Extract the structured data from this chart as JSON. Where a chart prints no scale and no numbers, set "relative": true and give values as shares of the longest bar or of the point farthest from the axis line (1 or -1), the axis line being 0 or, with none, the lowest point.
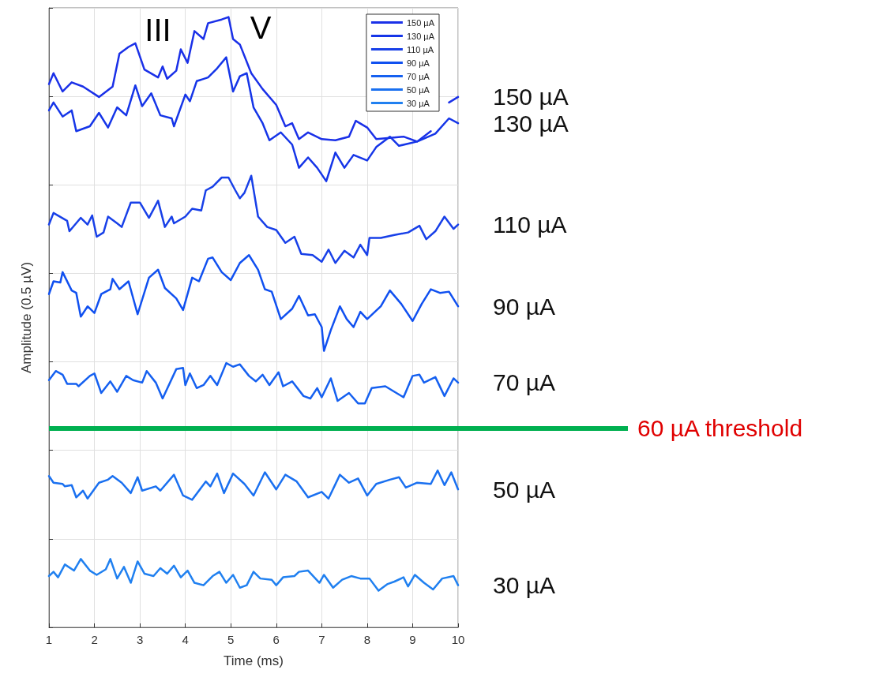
{
  "chart_data": {
    "type": "line",
    "relative": true,
    "xlabel": "Time (ms)",
    "ylabel": "Amplitude (0.5 µV)",
    "xlim": [
      1,
      10
    ],
    "xticks": [
      1,
      2,
      3,
      4,
      5,
      6,
      7,
      8,
      9,
      10
    ],
    "grid": true,
    "legend": "top right",
    "marker": "none",
    "line_style": "solid",
    "annotations": [
      "III",
      "V"
    ],
    "ref_lines": [
      {
        "axis": "y",
        "value": 0.326,
        "label": "60 µA threshold",
        "color": "#00b050"
      }
    ],
    "series": [
      {
        "name": "150 µA",
        "color": "#1a30e8",
        "x": [
          1,
          1.1,
          1.3,
          1.5,
          1.75,
          2.1,
          2.4,
          2.55,
          2.75,
          2.9,
          3.1,
          3.4,
          3.5,
          3.6,
          3.8,
          3.9,
          4.05,
          4.2,
          4.4,
          4.5,
          4.8,
          4.95,
          5.05,
          5.2,
          5.45,
          5.7,
          6,
          6.2,
          6.35,
          6.5,
          6.7,
          7,
          7.3,
          7.6,
          7.75,
          8,
          8.2,
          8.5,
          8.8,
          9.1,
          9.4,
          9.6,
          9.8,
          10
        ],
        "values": [
          0.89,
          0.908,
          0.878,
          0.893,
          0.886,
          0.869,
          0.886,
          0.94,
          0.951,
          0.957,
          0.914,
          0.901,
          0.919,
          0.899,
          0.912,
          0.947,
          0.925,
          0.977,
          0.964,
          0.99,
          0.996,
          1,
          0.964,
          0.955,
          0.908,
          0.882,
          0.856,
          0.821,
          0.826,
          0.8,
          0.811,
          0.8,
          0.798,
          0.804,
          0.83,
          0.819,
          0.8,
          0.802,
          0.804,
          0.796,
          0.813,
          null,
          0.86,
          0.869
        ]
      },
      {
        "name": "130 µA",
        "color": "#1535e8",
        "x": [
          1,
          1.1,
          1.3,
          1.5,
          1.6,
          1.9,
          2.1,
          2.3,
          2.5,
          2.7,
          2.9,
          3.05,
          3.25,
          3.45,
          3.7,
          3.75,
          4,
          4.1,
          4.25,
          4.5,
          4.7,
          4.9,
          5.05,
          5.2,
          5.35,
          5.5,
          5.7,
          5.85,
          6.1,
          6.35,
          6.5,
          6.7,
          6.9,
          7.1,
          7.3,
          7.5,
          7.7,
          8,
          8.2,
          8.5,
          8.7,
          9.1,
          9.5,
          9.8,
          10
        ],
        "values": [
          0.847,
          0.86,
          0.837,
          0.847,
          0.813,
          0.821,
          0.843,
          0.819,
          0.852,
          0.839,
          0.888,
          0.854,
          0.875,
          0.839,
          0.834,
          0.821,
          0.873,
          0.862,
          0.895,
          0.901,
          0.916,
          0.934,
          0.878,
          0.903,
          0.908,
          0.852,
          0.826,
          0.798,
          0.811,
          0.791,
          0.753,
          0.77,
          0.753,
          0.731,
          0.778,
          0.753,
          0.774,
          0.765,
          0.787,
          0.804,
          0.789,
          0.796,
          0.809,
          0.834,
          0.826
        ]
      },
      {
        "name": "110 µA",
        "color": "#1840e8",
        "x": [
          1,
          1.1,
          1.4,
          1.45,
          1.7,
          1.85,
          1.95,
          2.05,
          2.2,
          2.3,
          2.5,
          2.6,
          2.8,
          3,
          3.2,
          3.4,
          3.55,
          3.7,
          3.75,
          4,
          4.15,
          4.35,
          4.45,
          4.6,
          4.8,
          4.95,
          5.1,
          5.2,
          5.3,
          5.45,
          5.6,
          5.8,
          6,
          6.2,
          6.4,
          6.55,
          6.8,
          7,
          7.15,
          7.3,
          7.5,
          7.7,
          7.85,
          8,
          8.05,
          8.3,
          8.6,
          8.9,
          9.15,
          9.3,
          9.5,
          9.7,
          9.9,
          10
        ],
        "values": [
          0.66,
          0.679,
          0.666,
          0.649,
          0.671,
          0.66,
          0.675,
          0.64,
          0.647,
          0.673,
          0.662,
          0.656,
          0.696,
          0.696,
          0.671,
          0.699,
          0.656,
          0.673,
          0.662,
          0.673,
          0.686,
          0.683,
          0.716,
          0.722,
          0.737,
          0.737,
          0.716,
          0.703,
          0.712,
          0.74,
          0.673,
          0.656,
          0.651,
          0.63,
          0.64,
          0.612,
          0.61,
          0.599,
          0.619,
          0.597,
          0.617,
          0.606,
          0.627,
          0.61,
          0.638,
          0.638,
          0.643,
          0.647,
          0.658,
          0.636,
          0.649,
          0.673,
          0.653,
          0.66
        ]
      },
      {
        "name": "90 µA",
        "color": "#1050f0",
        "x": [
          1,
          1.1,
          1.25,
          1.3,
          1.5,
          1.6,
          1.7,
          1.85,
          2,
          2.15,
          2.35,
          2.4,
          2.55,
          2.75,
          2.95,
          3.2,
          3.4,
          3.55,
          3.8,
          3.95,
          4.15,
          4.3,
          4.5,
          4.6,
          4.8,
          5,
          5.2,
          5.4,
          5.6,
          5.75,
          5.9,
          6.1,
          6.35,
          6.5,
          6.7,
          6.85,
          7,
          7.05,
          7.2,
          7.4,
          7.55,
          7.7,
          7.85,
          8,
          8.3,
          8.5,
          8.75,
          9,
          9.2,
          9.4,
          9.6,
          9.8,
          10
        ],
        "values": [
          0.546,
          0.567,
          0.565,
          0.582,
          0.552,
          0.548,
          0.509,
          0.526,
          0.515,
          0.546,
          0.554,
          0.571,
          0.554,
          0.567,
          0.513,
          0.573,
          0.586,
          0.556,
          0.539,
          0.52,
          0.573,
          0.567,
          0.604,
          0.606,
          0.582,
          0.569,
          0.597,
          0.61,
          0.586,
          0.554,
          0.55,
          0.505,
          0.522,
          0.543,
          0.511,
          0.513,
          0.492,
          0.453,
          0.487,
          0.526,
          0.505,
          0.492,
          0.517,
          0.505,
          0.526,
          0.552,
          0.53,
          0.502,
          0.53,
          0.554,
          0.548,
          0.55,
          0.526
        ]
      },
      {
        "name": "70 µA",
        "color": "#1560f0",
        "x": [
          1,
          1.15,
          1.3,
          1.4,
          1.6,
          1.65,
          1.9,
          2,
          2.15,
          2.35,
          2.5,
          2.7,
          2.85,
          3.05,
          3.15,
          3.35,
          3.5,
          3.8,
          3.95,
          4,
          4.1,
          4.25,
          4.4,
          4.55,
          4.7,
          4.9,
          5.05,
          5.2,
          5.4,
          5.55,
          5.7,
          5.85,
          6.05,
          6.15,
          6.35,
          6.6,
          6.75,
          6.9,
          7,
          7.2,
          7.35,
          7.6,
          7.8,
          7.95,
          8.1,
          8.4,
          8.6,
          8.8,
          9,
          9.15,
          9.25,
          9.5,
          9.7,
          9.9,
          10
        ],
        "values": [
          0.405,
          0.42,
          0.414,
          0.399,
          0.399,
          0.395,
          0.412,
          0.416,
          0.384,
          0.403,
          0.386,
          0.412,
          0.405,
          0.401,
          0.42,
          0.401,
          0.375,
          0.423,
          0.425,
          0.397,
          0.416,
          0.392,
          0.397,
          0.412,
          0.397,
          0.433,
          0.427,
          0.431,
          0.412,
          0.403,
          0.414,
          0.397,
          0.418,
          0.395,
          0.403,
          0.379,
          0.375,
          0.392,
          0.377,
          0.408,
          0.371,
          0.384,
          0.367,
          0.367,
          0.392,
          0.395,
          0.386,
          0.377,
          0.412,
          0.414,
          0.401,
          0.41,
          0.379,
          0.408,
          0.401
        ]
      },
      {
        "name": "50 µA",
        "color": "#1a70f0",
        "x": [
          1,
          1.1,
          1.3,
          1.35,
          1.5,
          1.6,
          1.75,
          1.85,
          2.1,
          2.3,
          2.4,
          2.6,
          2.8,
          2.95,
          3.05,
          3.35,
          3.45,
          3.75,
          3.95,
          4.15,
          4.45,
          4.55,
          4.7,
          4.85,
          5.05,
          5.3,
          5.5,
          5.75,
          6,
          6.2,
          6.45,
          6.7,
          7,
          7.15,
          7.4,
          7.6,
          7.8,
          8,
          8.2,
          8.5,
          8.7,
          8.85,
          9.1,
          9.4,
          9.55,
          9.7,
          9.85,
          10
        ],
        "values": [
          0.248,
          0.237,
          0.235,
          0.231,
          0.233,
          0.213,
          0.224,
          0.211,
          0.237,
          0.242,
          0.248,
          0.237,
          0.22,
          0.246,
          0.224,
          0.231,
          0.224,
          0.25,
          0.216,
          0.209,
          0.239,
          0.231,
          0.252,
          0.22,
          0.252,
          0.235,
          0.216,
          0.254,
          0.226,
          0.25,
          0.239,
          0.213,
          0.222,
          0.211,
          0.25,
          0.237,
          0.244,
          0.216,
          0.235,
          0.242,
          0.246,
          0.229,
          0.237,
          0.235,
          0.257,
          0.233,
          0.254,
          0.226
        ]
      },
      {
        "name": "30 µA",
        "color": "#2080f0",
        "x": [
          1,
          1.1,
          1.2,
          1.35,
          1.55,
          1.7,
          1.9,
          2.05,
          2.25,
          2.35,
          2.5,
          2.65,
          2.8,
          2.95,
          3.1,
          3.3,
          3.45,
          3.6,
          3.75,
          3.9,
          4.05,
          4.2,
          4.4,
          4.6,
          4.75,
          4.9,
          5.05,
          5.2,
          5.35,
          5.5,
          5.65,
          5.9,
          6,
          6.15,
          6.4,
          6.5,
          6.7,
          6.95,
          7.05,
          7.25,
          7.45,
          7.65,
          7.85,
          8.05,
          8.25,
          8.45,
          8.6,
          8.8,
          8.9,
          9.05,
          9.25,
          9.45,
          9.65,
          9.9,
          10
        ],
        "values": [
          0.084,
          0.091,
          0.082,
          0.103,
          0.093,
          0.112,
          0.093,
          0.086,
          0.095,
          0.112,
          0.08,
          0.099,
          0.073,
          0.108,
          0.088,
          0.084,
          0.097,
          0.088,
          0.101,
          0.082,
          0.093,
          0.073,
          0.069,
          0.084,
          0.091,
          0.073,
          0.086,
          0.065,
          0.069,
          0.091,
          0.08,
          0.078,
          0.069,
          0.082,
          0.084,
          0.091,
          0.093,
          0.073,
          0.086,
          0.065,
          0.078,
          0.084,
          0.08,
          0.08,
          0.06,
          0.071,
          0.075,
          0.082,
          0.067,
          0.086,
          0.073,
          0.062,
          0.08,
          0.084,
          0.069
        ]
      }
    ]
  }
}
